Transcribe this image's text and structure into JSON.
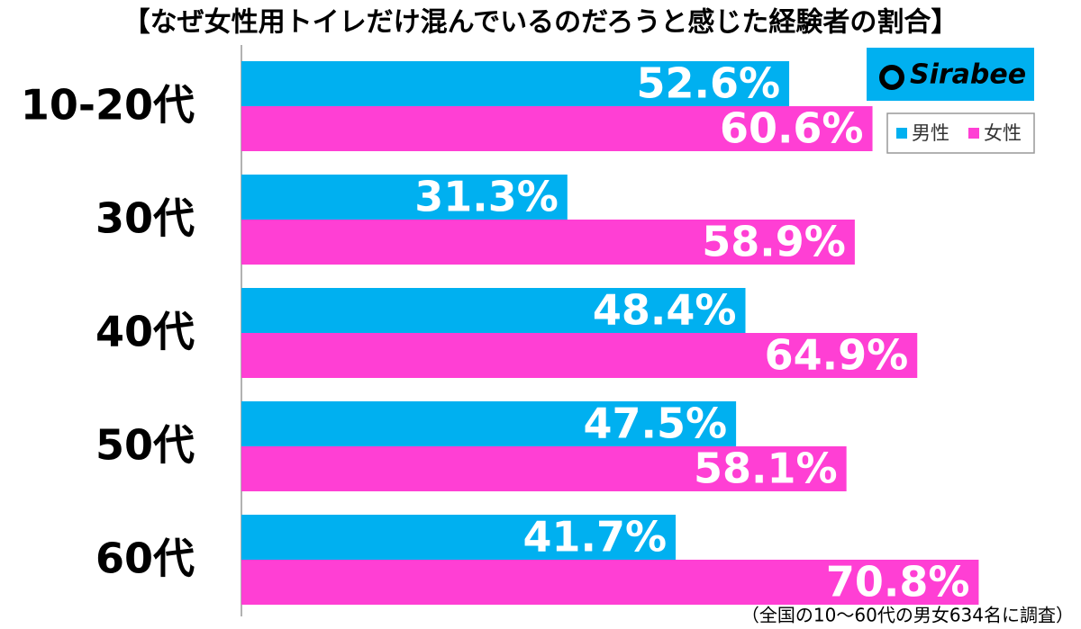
{
  "chart_data": {
    "type": "barh",
    "title": "【なぜ女性用トイレだけ混んでいるのだろうと感じた経験者の割合】",
    "categories": [
      "10-20代",
      "30代",
      "40代",
      "50代",
      "60代"
    ],
    "series": [
      {
        "name": "男性",
        "color": "#00b0f0",
        "values": [
          52.6,
          31.3,
          48.4,
          47.5,
          41.7
        ],
        "value_labels": [
          "52.6%",
          "31.3%",
          "48.4%",
          "47.5%",
          "41.7%"
        ]
      },
      {
        "name": "女性",
        "color": "#ff3fd4",
        "values": [
          60.6,
          58.9,
          64.9,
          58.1,
          70.8
        ],
        "value_labels": [
          "60.6%",
          "58.9%",
          "64.9%",
          "58.1%",
          "70.8%"
        ]
      }
    ],
    "xlim": [
      0,
      80
    ],
    "logo": "Sirabee",
    "note": "（全国の10～60代の男女634名に調査）"
  }
}
